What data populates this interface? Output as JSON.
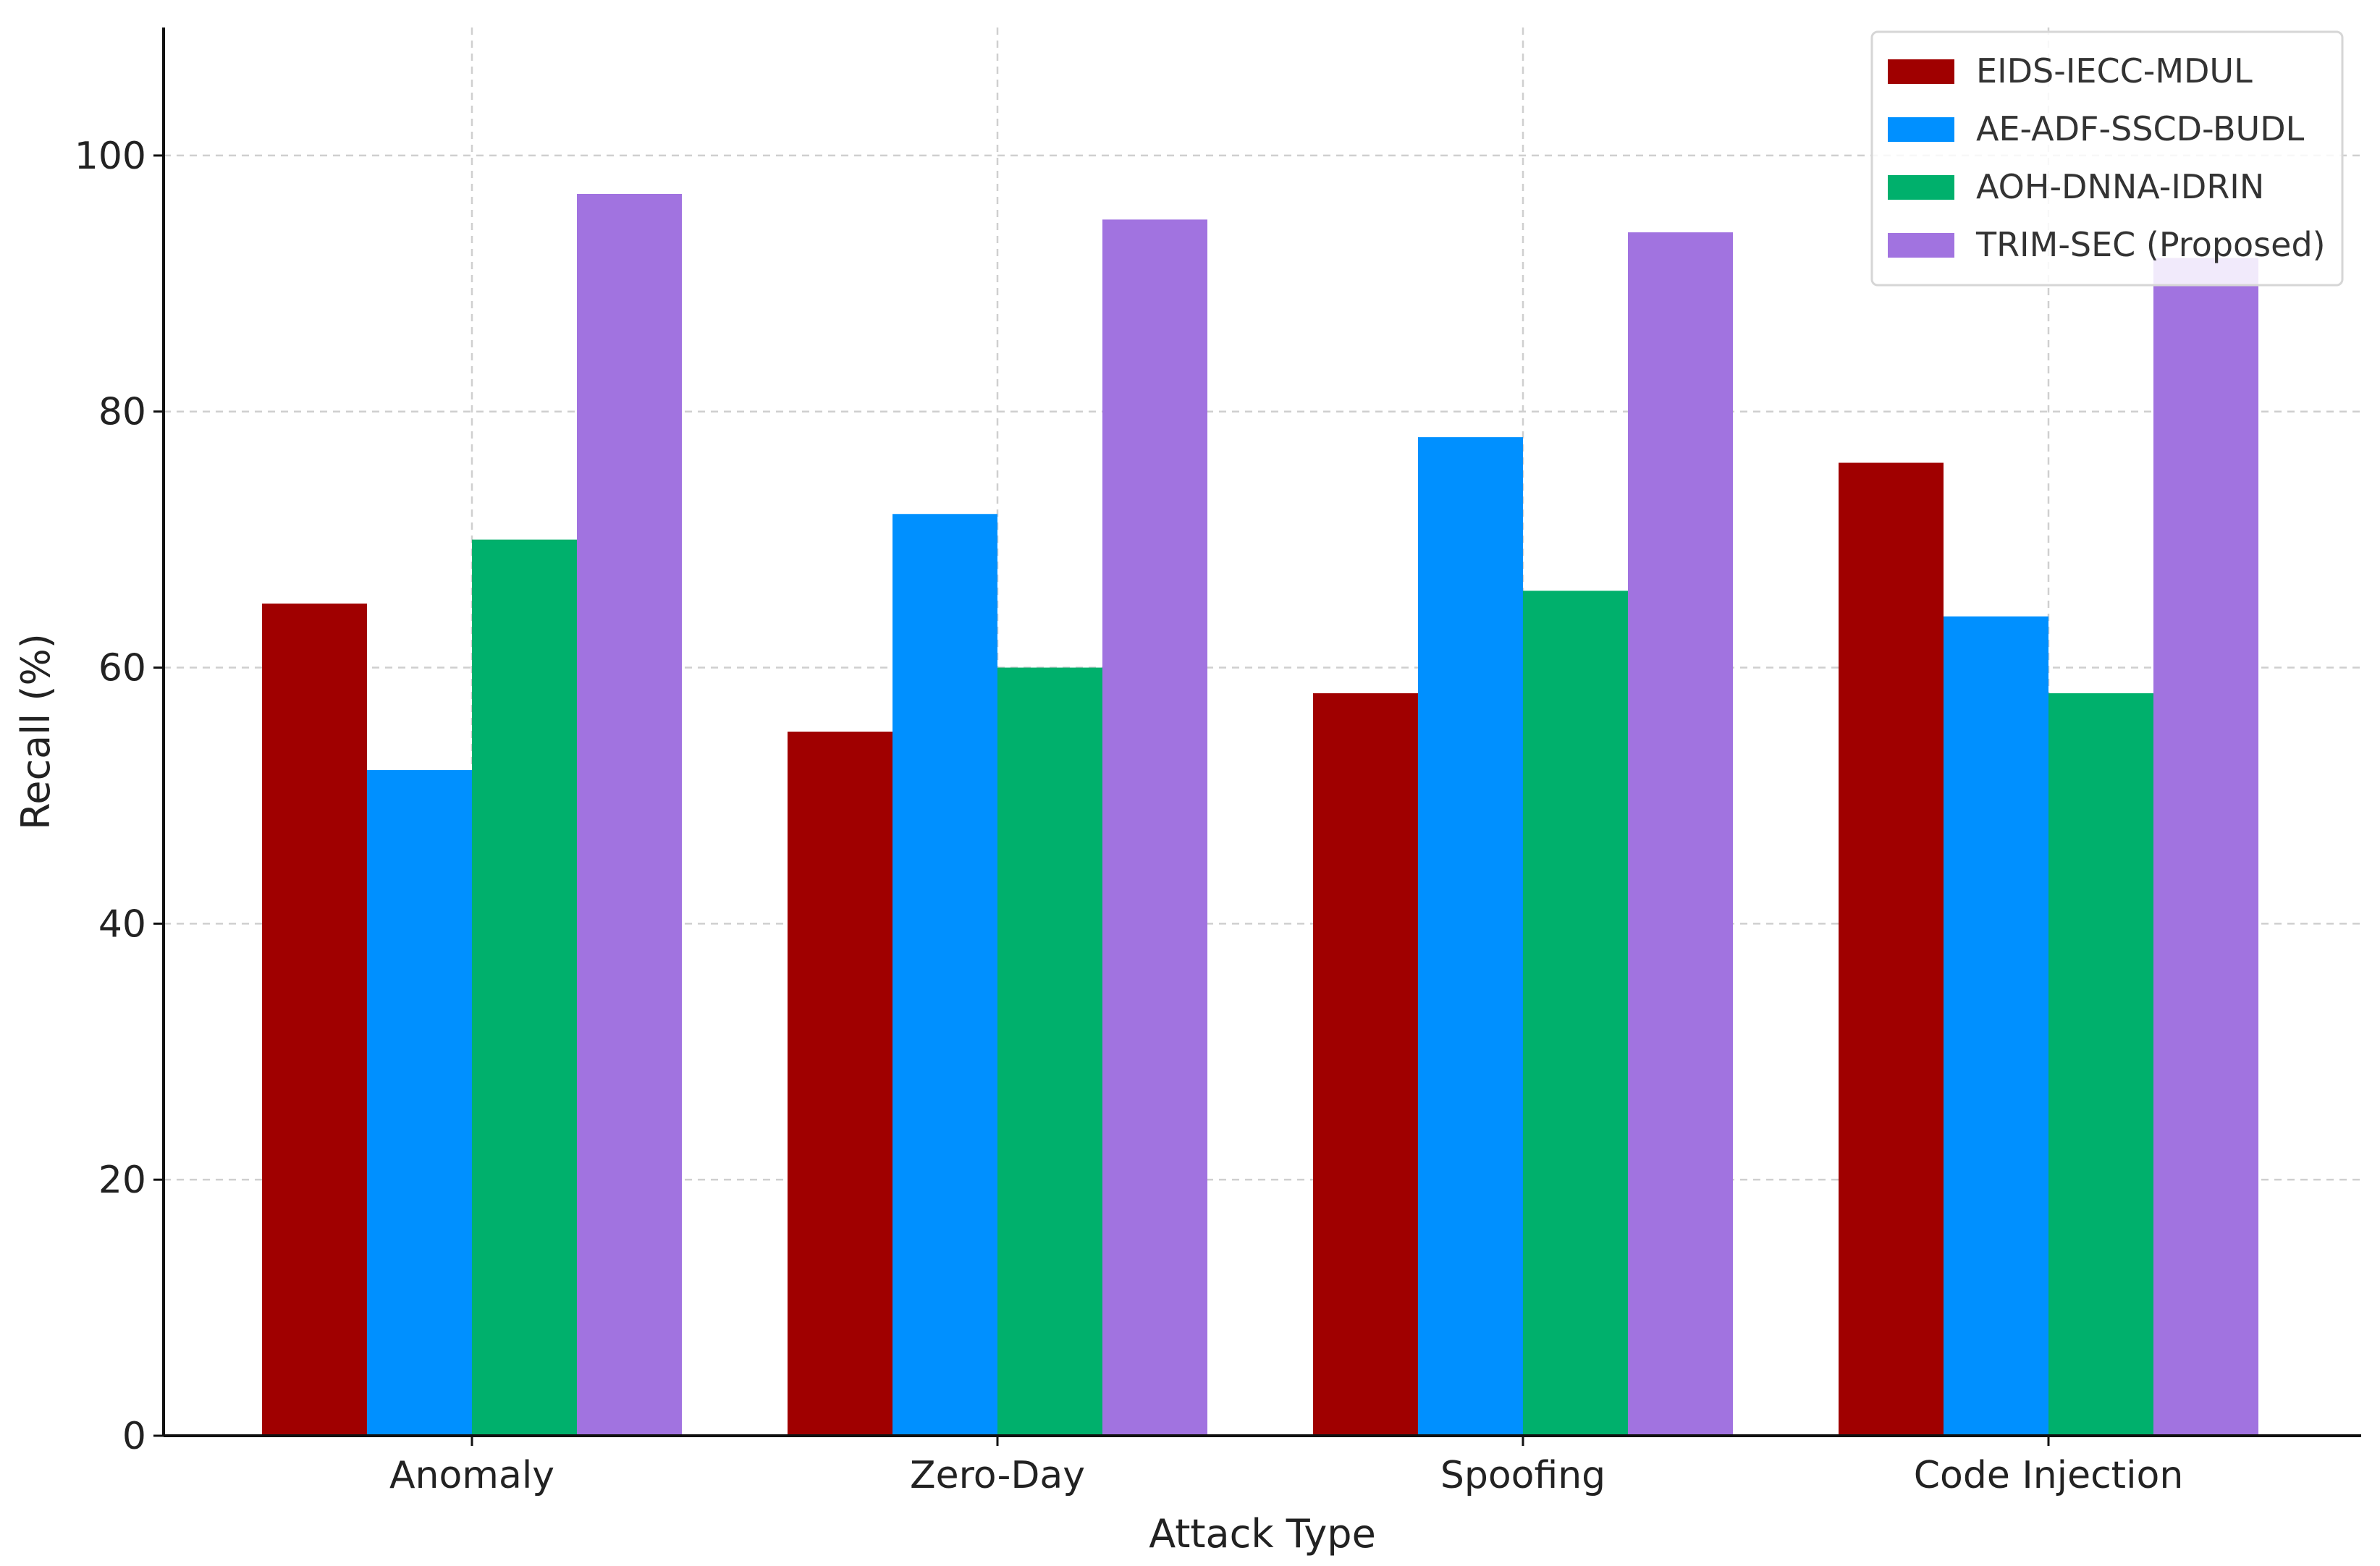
{
  "chart_data": {
    "type": "bar",
    "title": "",
    "xlabel": "Attack Type",
    "ylabel": "Recall (%)",
    "ylim": [
      0,
      110
    ],
    "yticks": [
      0,
      20,
      40,
      60,
      80,
      100
    ],
    "grid": true,
    "legend_position": "top-right",
    "categories": [
      "Anomaly",
      "Zero-Day",
      "Spoofing",
      "Code Injection"
    ],
    "series": [
      {
        "name": "EIDS-IECC-MDUL",
        "color": "#a00000",
        "values": [
          65,
          55,
          58,
          76
        ]
      },
      {
        "name": "AE-ADF-SSCD-BUDL",
        "color": "#0090ff",
        "values": [
          52,
          72,
          78,
          64
        ]
      },
      {
        "name": "AOH-DNNA-IDRIN",
        "color": "#00b06c",
        "values": [
          70,
          60,
          66,
          58
        ]
      },
      {
        "name": "TRIM-SEC (Proposed)",
        "color": "#a173e0",
        "values": [
          97,
          95,
          94,
          92
        ]
      }
    ]
  }
}
